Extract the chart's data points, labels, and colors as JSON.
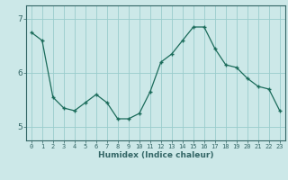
{
  "x": [
    0,
    1,
    2,
    3,
    4,
    5,
    6,
    7,
    8,
    9,
    10,
    11,
    12,
    13,
    14,
    15,
    16,
    17,
    18,
    19,
    20,
    21,
    22,
    23
  ],
  "y": [
    6.75,
    6.6,
    5.55,
    5.35,
    5.3,
    5.45,
    5.6,
    5.45,
    5.15,
    5.15,
    5.25,
    5.65,
    6.2,
    6.35,
    6.6,
    6.85,
    6.85,
    6.45,
    6.15,
    6.1,
    5.9,
    5.75,
    5.7,
    5.3
  ],
  "line_color": "#1a6b5a",
  "marker": "+",
  "background_color": "#cce8e8",
  "grid_color": "#99cccc",
  "axis_color": "#336666",
  "xlabel": "Humidex (Indice chaleur)",
  "ylim": [
    4.75,
    7.25
  ],
  "yticks": [
    5,
    6,
    7
  ],
  "xtick_labels": [
    "0",
    "1",
    "2",
    "3",
    "4",
    "5",
    "6",
    "7",
    "8",
    "9",
    "10",
    "11",
    "12",
    "13",
    "14",
    "15",
    "16",
    "17",
    "18",
    "19",
    "20",
    "21",
    "22",
    "23"
  ],
  "figsize": [
    3.2,
    2.0
  ],
  "dpi": 100
}
